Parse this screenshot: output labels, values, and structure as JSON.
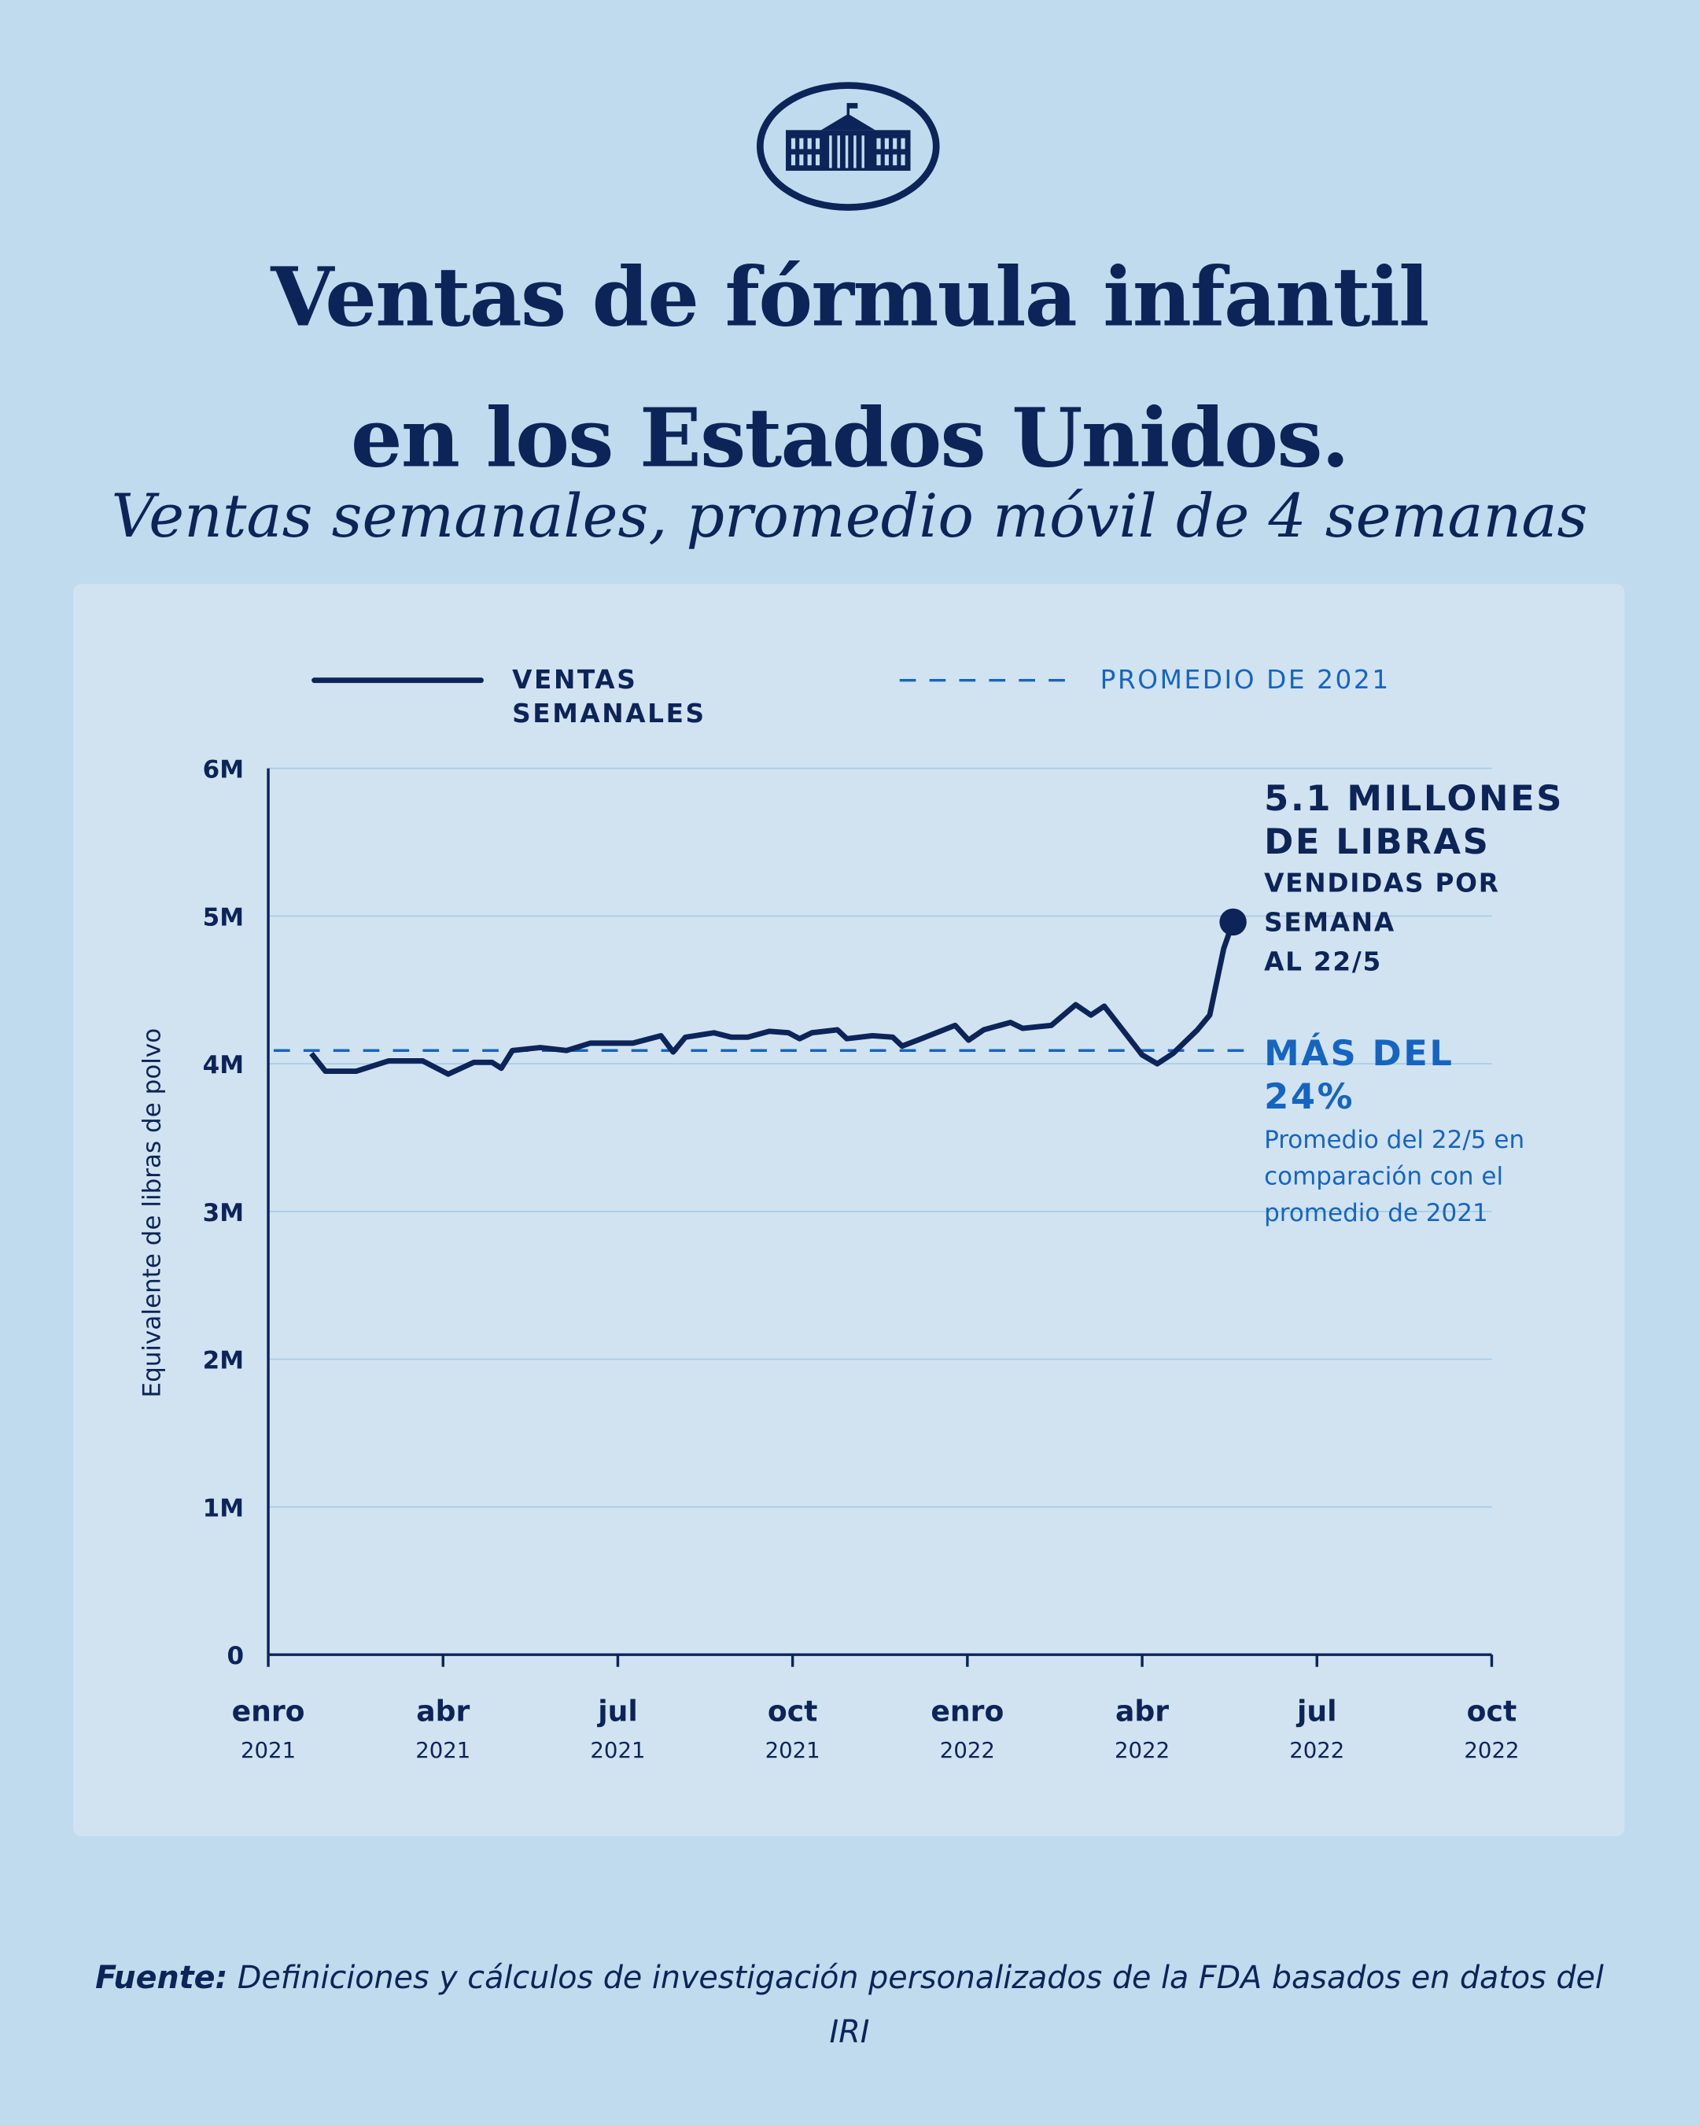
{
  "header": {
    "title_line1": "Ventas de fórmula infantil",
    "title_line2": "en los Estados Unidos.",
    "subtitle": "Ventas semanales, promedio móvil de 4 semanas",
    "logo": "white-house-seal"
  },
  "legend": {
    "series_line1": "VENTAS",
    "series_line2": "SEMANALES",
    "average": "PROMEDIO DE 2021"
  },
  "annotations": {
    "latest_line1": "5.1 MILLONES",
    "latest_line2": "DE LIBRAS",
    "latest_line3": "VENDIDAS POR",
    "latest_line4": "SEMANA",
    "latest_line5": "AL 22/5",
    "increase_line1": "MÁS DEL",
    "increase_line2": "24%",
    "increase_desc": "Promedio del 22/5 en comparación con el promedio de 2021"
  },
  "source": {
    "label": "Fuente:",
    "text": "Definiciones y cálculos de investigación personalizados de la FDA basados en datos del IRI"
  },
  "colors": {
    "navy": "#0c2458",
    "blue": "#1565c0",
    "panel": "#d1e3f0",
    "background": "#c0dbed"
  },
  "chart_data": {
    "type": "line",
    "title": "Ventas semanales, promedio móvil de 4 semanas",
    "ylabel": "Equivalente de libras de polvo",
    "xlabel": "",
    "ylim": [
      0,
      6
    ],
    "xlim_months_since_jan_2021": [
      0,
      21
    ],
    "y_ticks": [
      {
        "v": 0,
        "label": "0"
      },
      {
        "v": 1,
        "label": "1M"
      },
      {
        "v": 2,
        "label": "2M"
      },
      {
        "v": 3,
        "label": "3M"
      },
      {
        "v": 4,
        "label": "4M"
      },
      {
        "v": 5,
        "label": "5M"
      },
      {
        "v": 6,
        "label": "6M"
      }
    ],
    "x_ticks": [
      {
        "m": 0,
        "label": "enro",
        "year": "2021"
      },
      {
        "m": 3,
        "label": "abr",
        "year": "2021"
      },
      {
        "m": 6,
        "label": "jul",
        "year": "2021"
      },
      {
        "m": 9,
        "label": "oct",
        "year": "2021"
      },
      {
        "m": 12,
        "label": "enro",
        "year": "2022"
      },
      {
        "m": 15,
        "label": "abr",
        "year": "2022"
      },
      {
        "m": 18,
        "label": "jul",
        "year": "2022"
      },
      {
        "m": 21,
        "label": "oct",
        "year": "2022"
      }
    ],
    "grid": true,
    "legend_position": "top",
    "average_2021_millions": 4.09,
    "series": [
      {
        "name": "Ventas semanales",
        "unit": "millones de libras",
        "points": [
          [
            0.74,
            4.07
          ],
          [
            0.98,
            3.95
          ],
          [
            1.51,
            3.95
          ],
          [
            2.07,
            4.02
          ],
          [
            2.65,
            4.02
          ],
          [
            3.09,
            3.93
          ],
          [
            3.53,
            4.01
          ],
          [
            3.84,
            4.01
          ],
          [
            4.0,
            3.97
          ],
          [
            4.19,
            4.09
          ],
          [
            4.67,
            4.11
          ],
          [
            5.12,
            4.09
          ],
          [
            5.53,
            4.14
          ],
          [
            6.26,
            4.14
          ],
          [
            6.74,
            4.19
          ],
          [
            6.95,
            4.08
          ],
          [
            7.16,
            4.18
          ],
          [
            7.65,
            4.21
          ],
          [
            7.95,
            4.18
          ],
          [
            8.23,
            4.18
          ],
          [
            8.6,
            4.22
          ],
          [
            8.93,
            4.21
          ],
          [
            9.12,
            4.17
          ],
          [
            9.33,
            4.21
          ],
          [
            9.77,
            4.23
          ],
          [
            9.93,
            4.17
          ],
          [
            10.37,
            4.19
          ],
          [
            10.72,
            4.18
          ],
          [
            10.88,
            4.12
          ],
          [
            11.21,
            4.17
          ],
          [
            11.79,
            4.26
          ],
          [
            12.02,
            4.16
          ],
          [
            12.28,
            4.23
          ],
          [
            12.74,
            4.28
          ],
          [
            12.95,
            4.24
          ],
          [
            13.44,
            4.26
          ],
          [
            13.86,
            4.4
          ],
          [
            14.12,
            4.33
          ],
          [
            14.35,
            4.39
          ],
          [
            15.0,
            4.06
          ],
          [
            15.26,
            4.0
          ],
          [
            15.53,
            4.07
          ],
          [
            15.95,
            4.23
          ],
          [
            16.16,
            4.33
          ],
          [
            16.4,
            4.78
          ],
          [
            16.56,
            4.96
          ]
        ]
      }
    ]
  }
}
